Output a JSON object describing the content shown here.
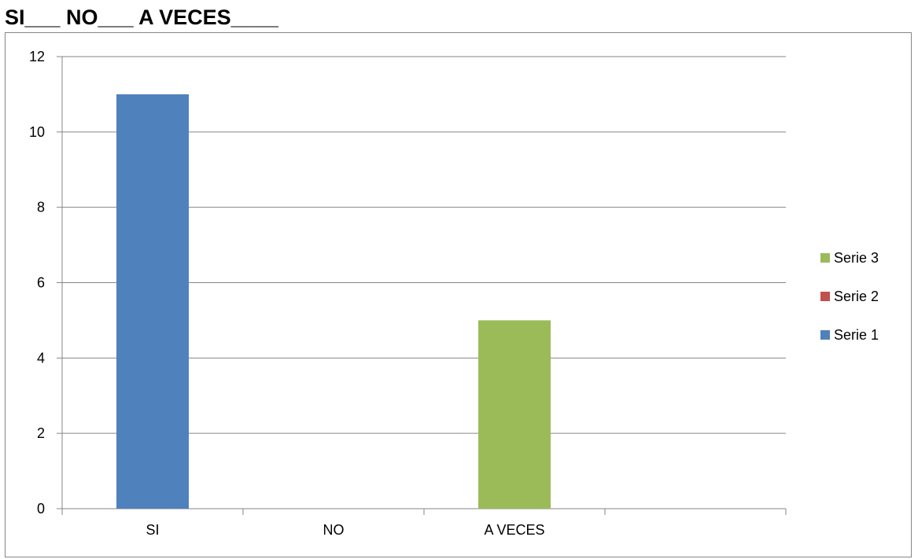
{
  "header": {
    "title": "SI___ NO___ A VECES____"
  },
  "chart_data": {
    "type": "bar",
    "categories": [
      "SI",
      "NO",
      "A VECES",
      ""
    ],
    "series": [
      {
        "name": "Serie 1",
        "values": [
          11,
          0,
          0,
          0
        ],
        "color": "#4f81bd"
      },
      {
        "name": "Serie 2",
        "values": [
          0,
          0,
          0,
          0
        ],
        "color": "#c0504d"
      },
      {
        "name": "Serie 3",
        "values": [
          0,
          0,
          5,
          0
        ],
        "color": "#9bbb59"
      }
    ],
    "ylim": [
      0,
      12
    ],
    "yticks": [
      0,
      2,
      4,
      6,
      8,
      10,
      12
    ],
    "grid": true,
    "legend": {
      "position": "right",
      "order": [
        "Serie 3",
        "Serie 2",
        "Serie 1"
      ]
    }
  }
}
